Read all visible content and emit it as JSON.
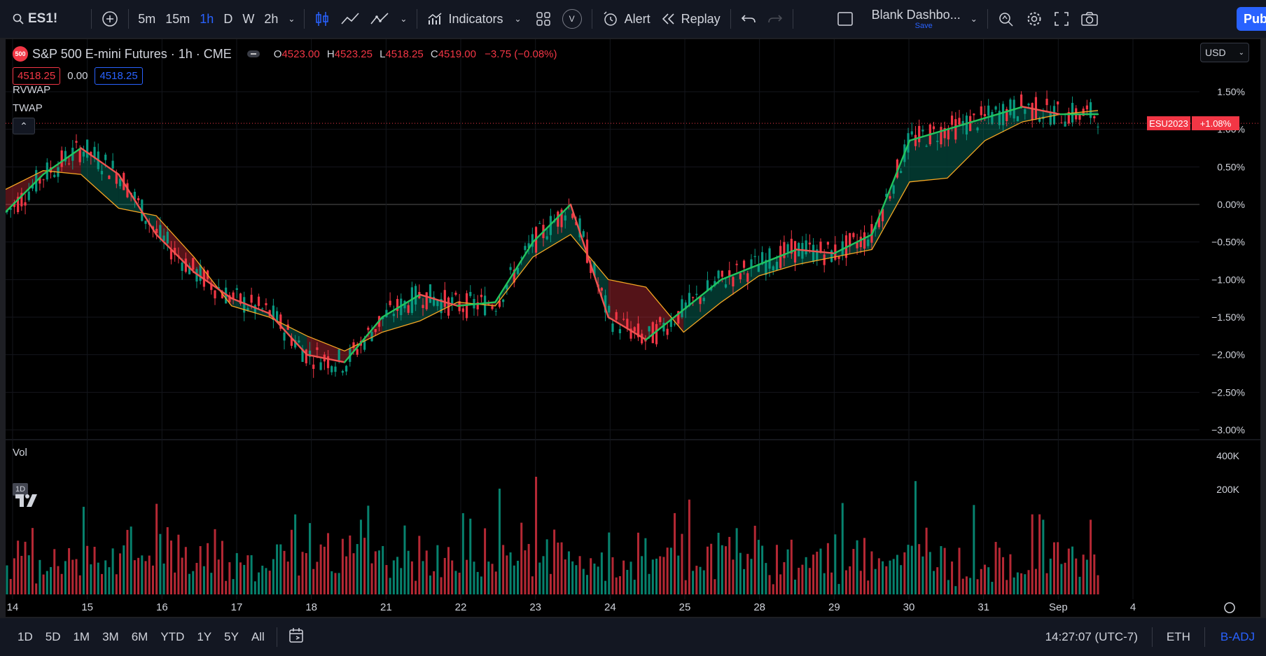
{
  "toolbar": {
    "symbol": "ES1!",
    "intervals": [
      {
        "label": "5m",
        "active": false
      },
      {
        "label": "15m",
        "active": false
      },
      {
        "label": "1h",
        "active": true
      },
      {
        "label": "D",
        "active": false
      },
      {
        "label": "W",
        "active": false
      },
      {
        "label": "2h",
        "active": false
      }
    ],
    "indicators_label": "Indicators",
    "v_label": "V",
    "alert_label": "Alert",
    "replay_label": "Replay",
    "layout_name": "Blank Dashbo...",
    "layout_save": "Save",
    "publish_label": "Pub"
  },
  "legend": {
    "badge": "500",
    "title": "S&P 500 E-mini Futures · 1h · CME",
    "o_label": "O",
    "o_value": "4523.00",
    "h_label": "H",
    "h_value": "4523.25",
    "l_label": "L",
    "l_value": "4518.25",
    "c_label": "C",
    "c_value": "4519.00",
    "change": "−3.75 (−0.08%)",
    "bid": "4518.25",
    "spread": "0.00",
    "ask": "4518.25"
  },
  "currency": "USD",
  "indicators": [
    "RVWAP",
    "TWAP"
  ],
  "volume_label": "Vol",
  "interval_tag": "1D",
  "price_axis": [
    "1.50%",
    "1.00%",
    "0.50%",
    "0.00%",
    "−0.50%",
    "−1.00%",
    "−1.50%",
    "−2.00%",
    "−2.50%",
    "−3.00%"
  ],
  "volume_axis": [
    "400K",
    "200K"
  ],
  "time_axis": [
    "14",
    "15",
    "16",
    "17",
    "18",
    "21",
    "22",
    "23",
    "24",
    "25",
    "28",
    "29",
    "30",
    "31",
    "Sep",
    "4"
  ],
  "last_price_tag": {
    "symbol": "ESU2023",
    "value": "+1.08%"
  },
  "bottom": {
    "ranges": [
      "1D",
      "5D",
      "1M",
      "3M",
      "6M",
      "YTD",
      "1Y",
      "5Y",
      "All"
    ],
    "time": "14:27:07 (UTC-7)",
    "session": "ETH",
    "adjust": "B-ADJ"
  },
  "colors": {
    "up": "#089981",
    "down": "#f23645",
    "up_ma": "#22c55e",
    "down_ma": "#ef5350",
    "twap": "#f5a623",
    "accent": "#2962ff"
  },
  "chart_data": {
    "type": "line",
    "series": [
      {
        "name": "RVWAP",
        "values": [
          -0.1,
          0.4,
          0.75,
          0.4,
          -0.4,
          -0.9,
          -1.25,
          -1.45,
          -2.0,
          -2.1,
          -1.5,
          -1.2,
          -1.35,
          -1.3,
          -0.5,
          0.0,
          -1.5,
          -1.8,
          -1.4,
          -1.0,
          -0.8,
          -0.6,
          -0.65,
          -0.4,
          0.85,
          1.0,
          1.15,
          1.3,
          1.2,
          1.2
        ]
      },
      {
        "name": "TWAP",
        "values": [
          0.2,
          0.45,
          0.4,
          -0.05,
          -0.15,
          -0.7,
          -1.35,
          -1.5,
          -1.75,
          -1.95,
          -1.7,
          -1.55,
          -1.3,
          -1.35,
          -0.7,
          -0.4,
          -1.0,
          -1.1,
          -1.7,
          -1.3,
          -0.95,
          -0.8,
          -0.7,
          -0.6,
          0.3,
          0.35,
          0.85,
          1.1,
          1.2,
          1.25
        ]
      }
    ],
    "ylim": [
      -3.0,
      1.5
    ],
    "volume": [
      80,
      120,
      90,
      140,
      100,
      230,
      130,
      180,
      90,
      160,
      110,
      130,
      120,
      200,
      140,
      150,
      110,
      160,
      100,
      170,
      80,
      250,
      140,
      200,
      190,
      150,
      160,
      230,
      130,
      170,
      140,
      300,
      130,
      190,
      170,
      140,
      160,
      210,
      120,
      180,
      140,
      330,
      150,
      120,
      200,
      190,
      160,
      230,
      140,
      190,
      140,
      170
    ]
  }
}
